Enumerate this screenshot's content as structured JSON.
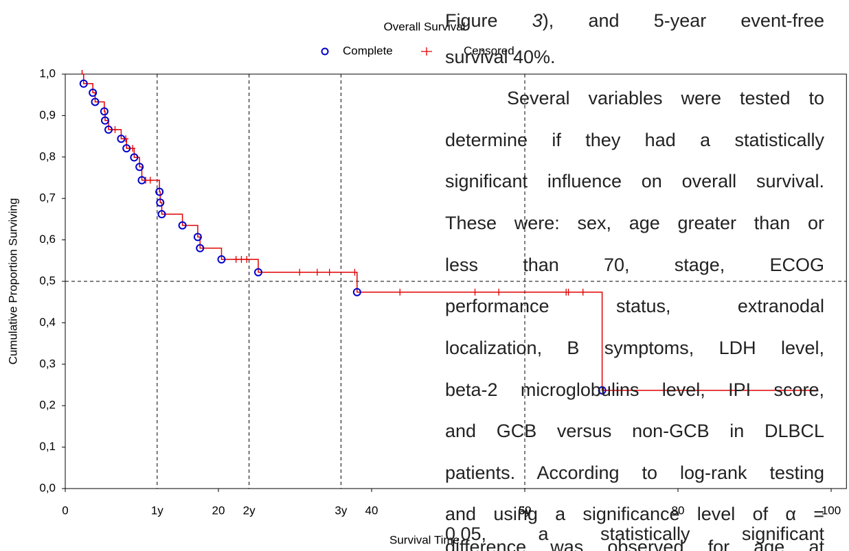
{
  "chart_data": {
    "type": "survival",
    "title": "Overall Survival",
    "x_label": "Survival Time",
    "y_label": "Cumulative Proportion Surviving",
    "xlim": [
      0,
      102
    ],
    "ylim": [
      0,
      1
    ],
    "xticks": [
      0,
      20,
      40,
      60,
      80,
      100
    ],
    "yticks": [
      {
        "value": 0,
        "label": "0,0"
      },
      {
        "value": 0.1,
        "label": "0,1"
      },
      {
        "value": 0.2,
        "label": "0,2"
      },
      {
        "value": 0.3,
        "label": "0,3"
      },
      {
        "value": 0.4,
        "label": "0,4"
      },
      {
        "value": 0.5,
        "label": "0,5"
      },
      {
        "value": 0.6,
        "label": "0,6"
      },
      {
        "value": 0.7,
        "label": "0,7"
      },
      {
        "value": 0.8,
        "label": "0,8"
      },
      {
        "value": 0.9,
        "label": "0,9"
      },
      {
        "value": 1,
        "label": "1,0"
      }
    ],
    "reference_x": [
      {
        "value": 12,
        "label": "1y"
      },
      {
        "value": 24,
        "label": "2y"
      },
      {
        "value": 36,
        "label": "3y"
      },
      {
        "value": 60,
        "label": "5y"
      }
    ],
    "reference_y": [
      0.5
    ],
    "curve": {
      "color": "#e00000",
      "x": [
        2.2,
        2.4,
        3.6,
        3.9,
        5.1,
        5.2,
        5.65,
        7.3,
        8.0,
        9.0,
        9.7,
        10.0,
        12.3,
        12.4,
        12.6,
        15.3,
        17.3,
        17.6,
        20.4,
        25.2,
        38.1,
        70.1,
        98.2
      ],
      "values": [
        1.0,
        0.977,
        0.955,
        0.933,
        0.91,
        0.888,
        0.866,
        0.844,
        0.821,
        0.799,
        0.776,
        0.744,
        0.716,
        0.69,
        0.662,
        0.635,
        0.607,
        0.58,
        0.553,
        0.522,
        0.474,
        0.237,
        0.237
      ]
    },
    "series": [
      {
        "name": "Complete",
        "color": "#0000cc",
        "marker": "circle",
        "x": [
          2.4,
          3.6,
          3.9,
          5.1,
          5.2,
          5.65,
          7.3,
          8.0,
          9.0,
          9.7,
          10.0,
          12.3,
          12.4,
          12.6,
          15.3,
          17.3,
          17.6,
          20.4,
          25.2,
          38.1,
          70.1
        ],
        "values": [
          0.977,
          0.955,
          0.933,
          0.91,
          0.888,
          0.866,
          0.844,
          0.821,
          0.799,
          0.776,
          0.744,
          0.716,
          0.69,
          0.662,
          0.635,
          0.607,
          0.58,
          0.553,
          0.522,
          0.474,
          0.237
        ]
      },
      {
        "name": "Censored",
        "color": "#e00000",
        "marker": "plus",
        "x": [
          6.5,
          7.9,
          8.8,
          10.5,
          11.1,
          22.3,
          23.0,
          23.7,
          30.6,
          32.9,
          34.5,
          37.8,
          43.7,
          53.5,
          56.6,
          65.4,
          65.7,
          67.6
        ],
        "values": [
          0.866,
          0.844,
          0.821,
          0.744,
          0.744,
          0.553,
          0.553,
          0.553,
          0.522,
          0.522,
          0.522,
          0.522,
          0.474,
          0.474,
          0.474,
          0.474,
          0.474,
          0.474
        ]
      }
    ]
  },
  "overlay_text": {
    "lines": [
      {
        "parts": [
          "Figure ",
          "3",
          "), and 5-year event-free"
        ]
      },
      {
        "parts": [
          "survival 40%."
        ]
      },
      {
        "parts": [
          "Several variables were tested to"
        ]
      },
      {
        "parts": [
          "determine if they had a statistically"
        ]
      },
      {
        "parts": [
          "significant influence on overall survival."
        ]
      },
      {
        "parts": [
          "These were: sex, age greater than or"
        ]
      },
      {
        "parts": [
          "less than 70, stage, ECOG"
        ]
      },
      {
        "parts": [
          "performance status, extranodal"
        ]
      },
      {
        "parts": [
          "localization, B symptoms, LDH level,"
        ]
      },
      {
        "parts": [
          "beta-2 microglobulins level, IPI score,"
        ]
      },
      {
        "parts": [
          "and GCB versus non-GCB in DLBCL"
        ]
      },
      {
        "parts": [
          "patients. According to log-rank testing"
        ]
      },
      {
        "parts": [
          "and using a significance level of α ="
        ]
      },
      {
        "parts": [
          "0.05, a statistically significant"
        ]
      },
      {
        "parts": [
          "difference was observed for age at"
        ]
      }
    ]
  }
}
